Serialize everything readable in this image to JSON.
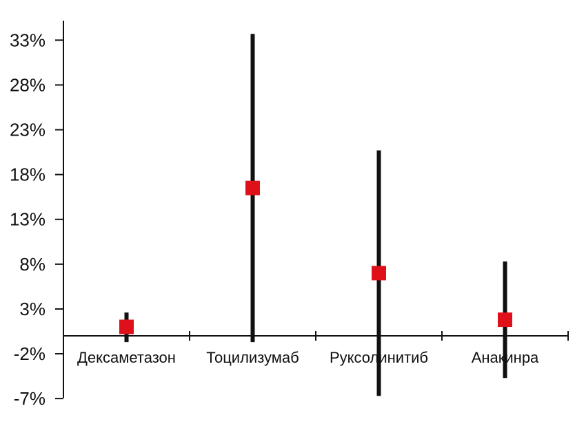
{
  "chart_data": {
    "type": "scatter",
    "title": "",
    "xlabel": "",
    "ylabel": "",
    "categories": [
      "Дексаметазон",
      "Тоцилизумаб",
      "Руксолинитиб",
      "Анакинра"
    ],
    "series": [
      {
        "values": [
          1.0,
          16.5,
          7.0,
          1.8
        ],
        "lower": [
          -0.7,
          -0.7,
          -6.7,
          -4.7
        ],
        "upper": [
          2.6,
          33.7,
          20.7,
          8.3
        ]
      }
    ],
    "ylim": [
      -7,
      35.5
    ],
    "yticks": [
      -7,
      -2,
      3,
      8,
      13,
      18,
      23,
      28,
      33
    ],
    "ytick_labels": [
      "-7%",
      "-2%",
      "3%",
      "8%",
      "13%",
      "18%",
      "23%",
      "28%",
      "33%"
    ],
    "grid": false,
    "legend": "none",
    "colors": {
      "marker": "#e0101a",
      "error_bar": "#111111",
      "axis": "#111111"
    }
  }
}
